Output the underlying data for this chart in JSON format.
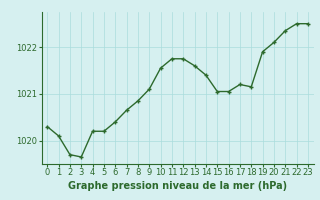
{
  "hours": [
    0,
    1,
    2,
    3,
    4,
    5,
    6,
    7,
    8,
    9,
    10,
    11,
    12,
    13,
    14,
    15,
    16,
    17,
    18,
    19,
    20,
    21,
    22,
    23
  ],
  "pressure": [
    1020.3,
    1020.1,
    1019.7,
    1019.65,
    1020.2,
    1020.2,
    1020.4,
    1020.65,
    1020.85,
    1021.1,
    1021.55,
    1021.75,
    1021.75,
    1021.6,
    1021.4,
    1021.05,
    1021.05,
    1021.2,
    1021.15,
    1021.9,
    1022.1,
    1022.35,
    1022.5,
    1022.5
  ],
  "line_color": "#2d6a2d",
  "marker_color": "#2d6a2d",
  "bg_color": "#d6f0f0",
  "grid_color": "#aadddd",
  "axis_color": "#2d6a2d",
  "xlabel": "Graphe pression niveau de la mer (hPa)",
  "ylim": [
    1019.5,
    1022.75
  ],
  "yticks": [
    1020,
    1021,
    1022
  ],
  "xticks": [
    0,
    1,
    2,
    3,
    4,
    5,
    6,
    7,
    8,
    9,
    10,
    11,
    12,
    13,
    14,
    15,
    16,
    17,
    18,
    19,
    20,
    21,
    22,
    23
  ],
  "xlabel_fontsize": 7.0,
  "tick_fontsize": 6.0,
  "line_width": 1.0,
  "marker_size": 3.5
}
